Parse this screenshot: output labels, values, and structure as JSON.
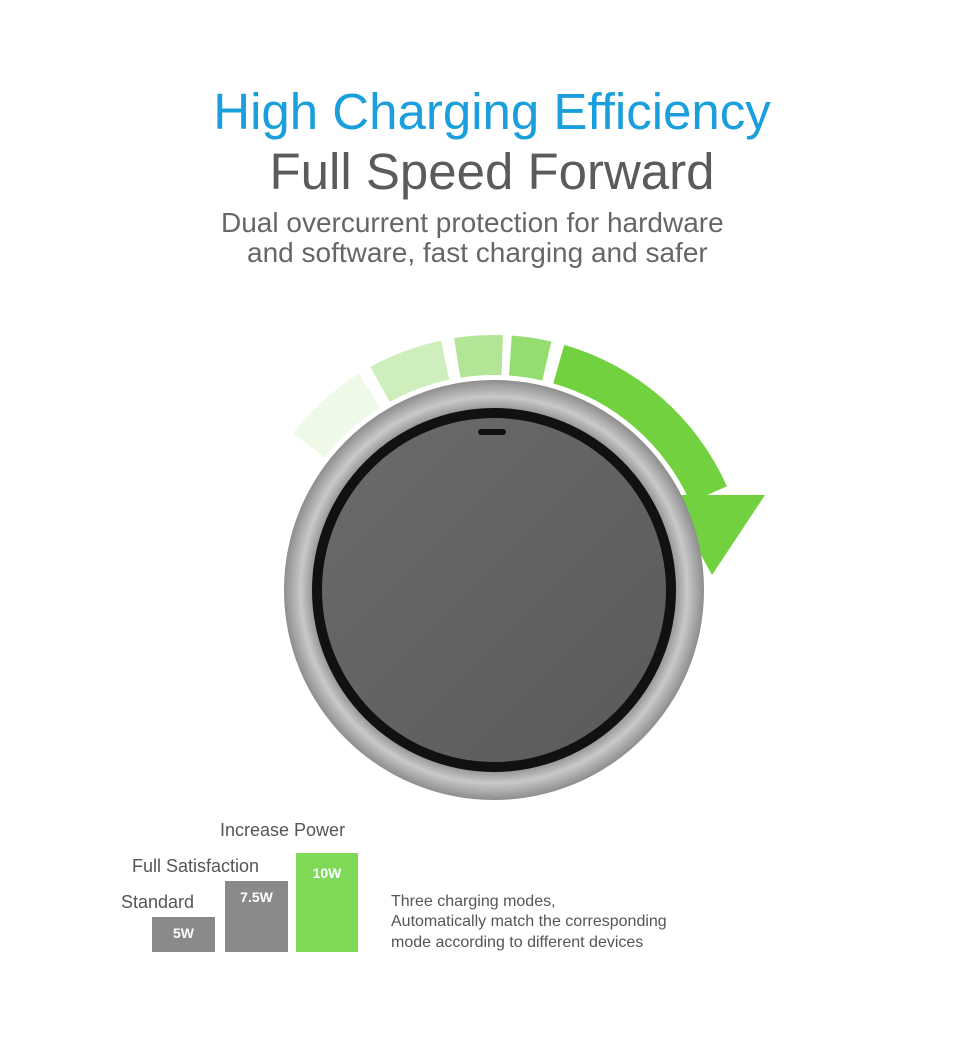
{
  "header": {
    "title": "High Charging Efficiency",
    "subtitle": "Full Speed Forward",
    "description": [
      "Dual overcurrent protection for hardware",
      "and software, fast charging and safer"
    ]
  },
  "modes": [
    {
      "label": "Standard",
      "power": "5W"
    },
    {
      "label": "Full Satisfaction",
      "power": "7.5W"
    },
    {
      "label": "Increase Power",
      "power": "10W"
    }
  ],
  "note": [
    "Three charging modes,",
    "Automatically match the corresponding",
    "mode according to different devices"
  ]
}
